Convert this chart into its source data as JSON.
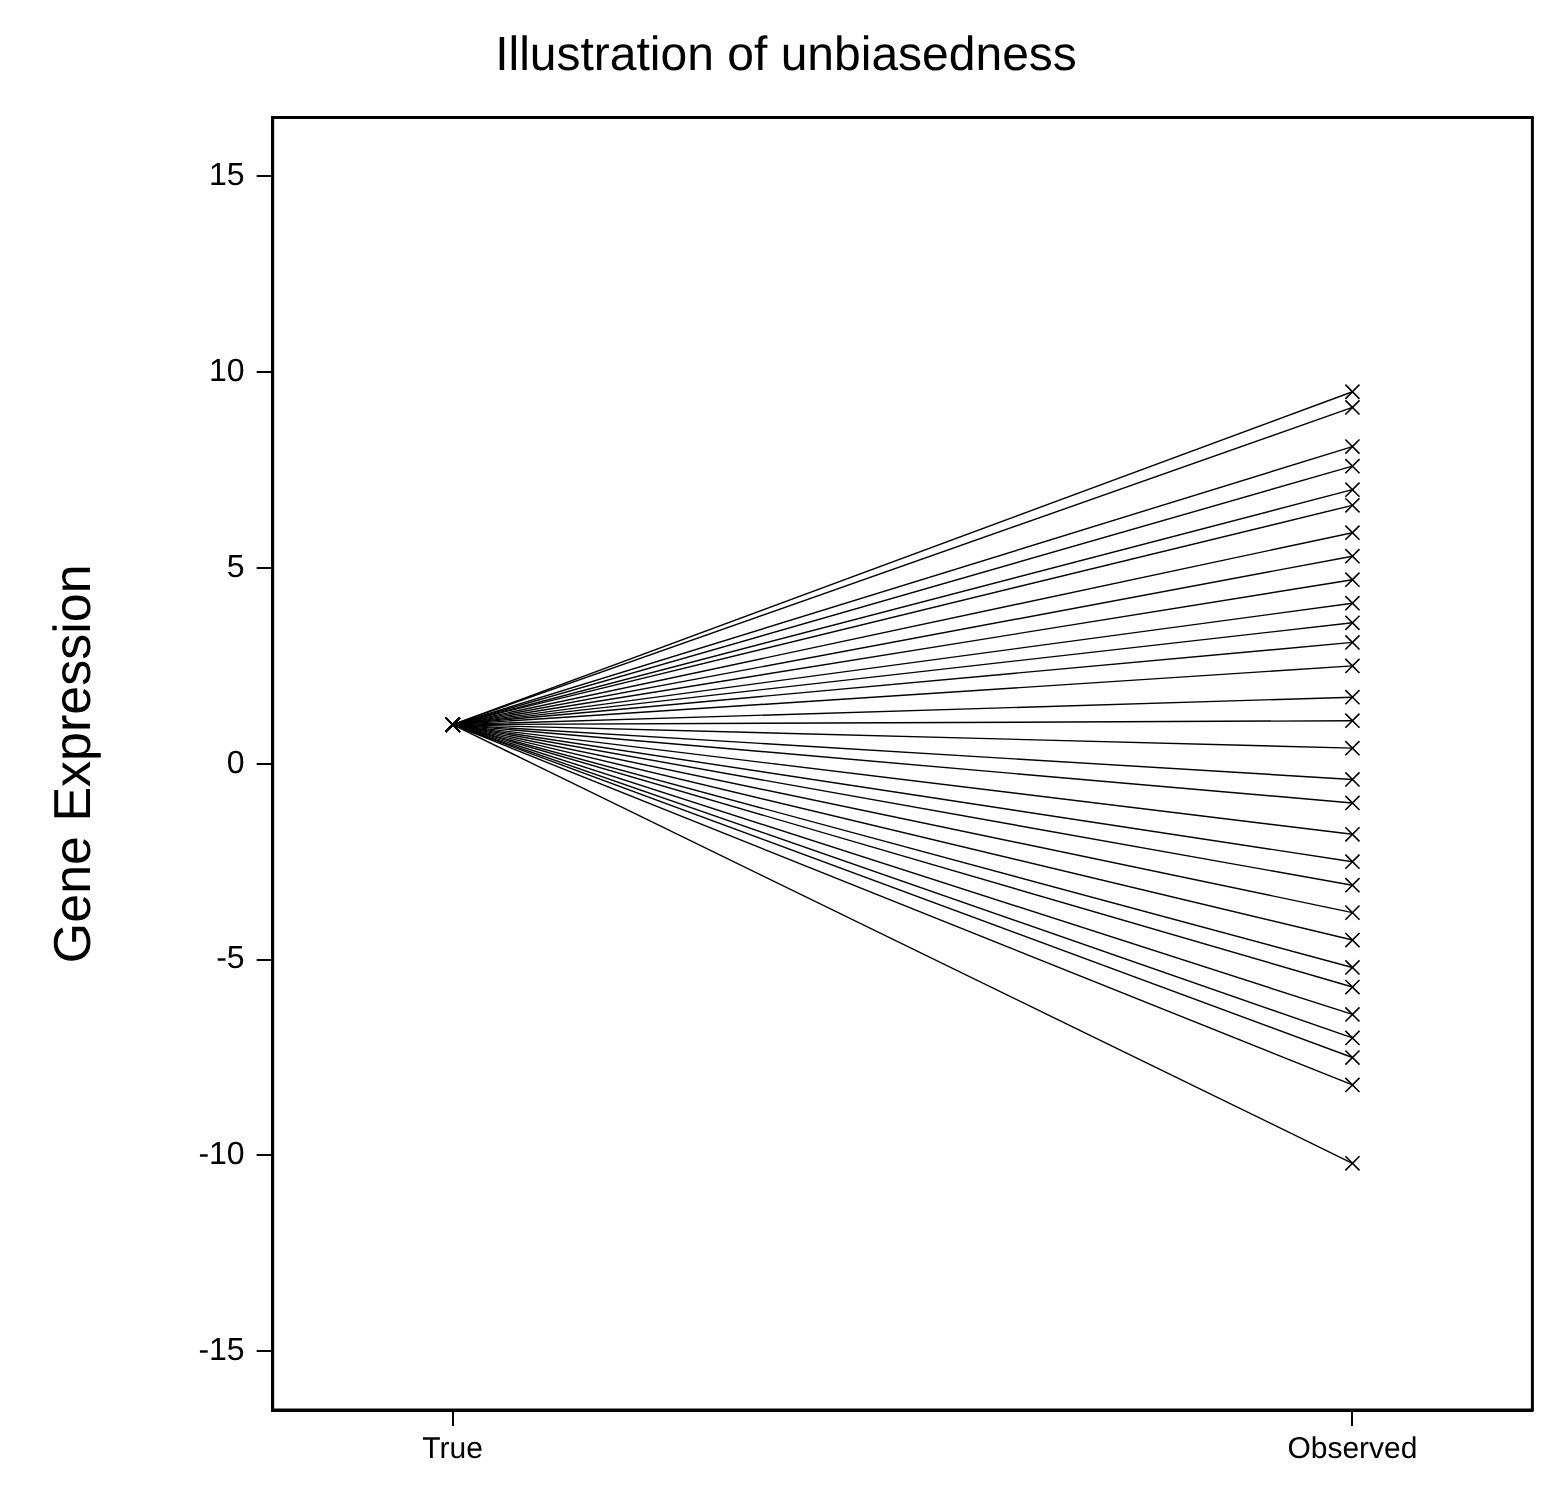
{
  "chart_data": {
    "type": "line",
    "title": "Illustration of unbiasedness",
    "ylabel": "Gene Expression",
    "categories": [
      "True",
      "Observed"
    ],
    "ylim": [
      -16.5,
      16.5
    ],
    "yticks": [
      -15,
      -10,
      -5,
      0,
      5,
      10,
      15
    ],
    "grid": false,
    "legend": false,
    "marker": "cross",
    "line_style": "solid",
    "series": [
      {
        "color": "#000000",
        "values": [
          1,
          9.5
        ]
      },
      {
        "color": "#000000",
        "values": [
          1,
          9.1
        ]
      },
      {
        "color": "#000000",
        "values": [
          1,
          8.1
        ]
      },
      {
        "color": "#000000",
        "values": [
          1,
          7.6
        ]
      },
      {
        "color": "#000000",
        "values": [
          1,
          7.0
        ]
      },
      {
        "color": "#000000",
        "values": [
          1,
          6.6
        ]
      },
      {
        "color": "#000000",
        "values": [
          1,
          5.9
        ]
      },
      {
        "color": "#000000",
        "values": [
          1,
          5.3
        ]
      },
      {
        "color": "#000000",
        "values": [
          1,
          4.7
        ]
      },
      {
        "color": "#000000",
        "values": [
          1,
          4.1
        ]
      },
      {
        "color": "#000000",
        "values": [
          1,
          3.6
        ]
      },
      {
        "color": "#000000",
        "values": [
          1,
          3.1
        ]
      },
      {
        "color": "#000000",
        "values": [
          1,
          2.5
        ]
      },
      {
        "color": "#000000",
        "values": [
          1,
          1.7
        ]
      },
      {
        "color": "#000000",
        "values": [
          1,
          1.1
        ]
      },
      {
        "color": "#000000",
        "values": [
          1,
          0.4
        ]
      },
      {
        "color": "#000000",
        "values": [
          1,
          -0.4
        ]
      },
      {
        "color": "#000000",
        "values": [
          1,
          -1.0
        ]
      },
      {
        "color": "#000000",
        "values": [
          1,
          -1.8
        ]
      },
      {
        "color": "#000000",
        "values": [
          1,
          -2.5
        ]
      },
      {
        "color": "#000000",
        "values": [
          1,
          -3.1
        ]
      },
      {
        "color": "#000000",
        "values": [
          1,
          -3.8
        ]
      },
      {
        "color": "#000000",
        "values": [
          1,
          -4.5
        ]
      },
      {
        "color": "#000000",
        "values": [
          1,
          -5.2
        ]
      },
      {
        "color": "#000000",
        "values": [
          1,
          -5.7
        ]
      },
      {
        "color": "#000000",
        "values": [
          1,
          -6.4
        ]
      },
      {
        "color": "#000000",
        "values": [
          1,
          -7.0
        ]
      },
      {
        "color": "#000000",
        "values": [
          1,
          -7.5
        ]
      },
      {
        "color": "#000000",
        "values": [
          1,
          -8.2
        ]
      },
      {
        "color": "#000000",
        "values": [
          1,
          -10.2
        ]
      }
    ]
  }
}
